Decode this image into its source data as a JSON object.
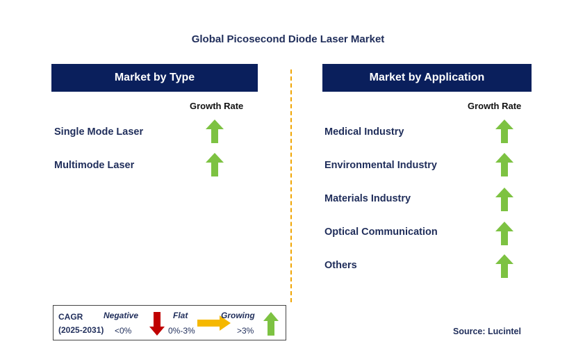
{
  "title": "Global Picosecond Diode Laser Market",
  "left_panel": {
    "header": "Market by Type",
    "growth_label": "Growth Rate",
    "items": [
      {
        "label": "Single Mode Laser",
        "trend": "growing"
      },
      {
        "label": "Multimode Laser",
        "trend": "growing"
      }
    ]
  },
  "right_panel": {
    "header": "Market by Application",
    "growth_label": "Growth Rate",
    "items": [
      {
        "label": "Medical Industry",
        "trend": "growing"
      },
      {
        "label": "Environmental Industry",
        "trend": "growing"
      },
      {
        "label": "Materials Industry",
        "trend": "growing"
      },
      {
        "label": "Optical Communication",
        "trend": "growing"
      },
      {
        "label": "Others",
        "trend": "growing"
      }
    ]
  },
  "legend": {
    "cagr_label": "CAGR",
    "period": "(2025-2031)",
    "negative_label": "Negative",
    "negative_range": "<0%",
    "flat_label": "Flat",
    "flat_range": "0%-3%",
    "growing_label": "Growing",
    "growing_range": ">3%"
  },
  "source": "Source: Lucintel",
  "colors": {
    "header_bg": "#0a1f5c",
    "growing": "#7dc242",
    "negative": "#c00000",
    "flat": "#f5b800",
    "divider": "#f0a500"
  }
}
